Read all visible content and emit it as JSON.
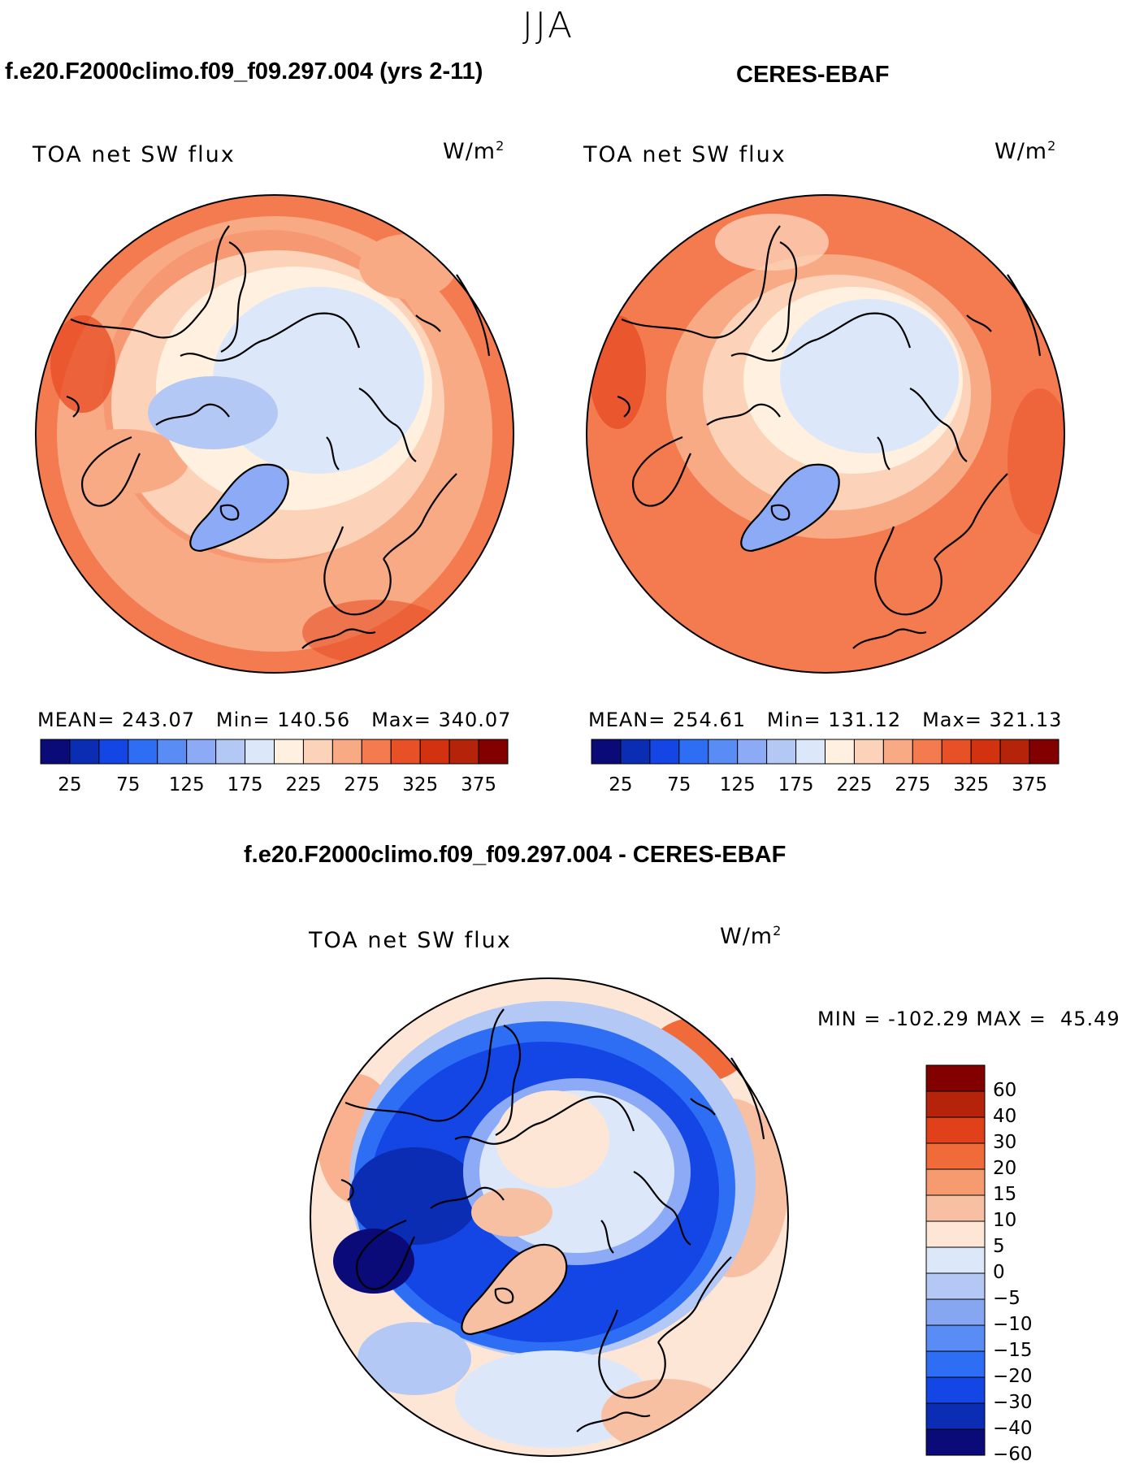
{
  "season": "JJA",
  "panels": [
    {
      "title": "f.e20.F2000climo.f09_f09.297.004 (yrs 2-11)",
      "variable": "TOA net SW flux",
      "units_base": "W/m",
      "units_exp": "2",
      "stats": {
        "mean_label": "MEAN=",
        "mean": "243.07",
        "min_label": "Min=",
        "min": "140.56",
        "max_label": "Max=",
        "max": "340.07"
      }
    },
    {
      "title": "CERES-EBAF",
      "variable": "TOA net SW flux",
      "units_base": "W/m",
      "units_exp": "2",
      "stats": {
        "mean_label": "MEAN=",
        "mean": "254.61",
        "min_label": "Min=",
        "min": "131.12",
        "max_label": "Max=",
        "max": "321.13"
      }
    }
  ],
  "field_colorbar": {
    "ticks": [
      "25",
      "75",
      "125",
      "175",
      "225",
      "275",
      "325",
      "375"
    ],
    "colors": [
      "#0a0a78",
      "#0a2db4",
      "#1446e6",
      "#2d6ef5",
      "#5a8cf5",
      "#8caaf5",
      "#b4c8f5",
      "#dce8fa",
      "#fff0e0",
      "#fcd2b8",
      "#f8aa84",
      "#f47a50",
      "#e85028",
      "#d2320f",
      "#b4230a",
      "#820000"
    ]
  },
  "diff_panel": {
    "title": "f.e20.F2000climo.f09_f09.297.004 - CERES-EBAF",
    "variable": "TOA net SW flux",
    "units_base": "W/m",
    "units_exp": "2",
    "minmax": {
      "min_label": "MIN =",
      "min": "-102.29",
      "max_label": "MAX =",
      "max": "45.49"
    },
    "colorbar": {
      "labels": [
        "60",
        "40",
        "30",
        "20",
        "15",
        "10",
        "5",
        "0",
        "-5",
        "-10",
        "-15",
        "-20",
        "-30",
        "-40",
        "-60"
      ],
      "colors": [
        "#820000",
        "#b4230a",
        "#e0401a",
        "#f06a3a",
        "#f69a70",
        "#f8c0a2",
        "#fde6d6",
        "#dce8fa",
        "#b4c8f5",
        "#86a6f2",
        "#5a8cf5",
        "#2d6ef5",
        "#1446e6",
        "#0a2db4",
        "#0a0a78"
      ]
    }
  }
}
